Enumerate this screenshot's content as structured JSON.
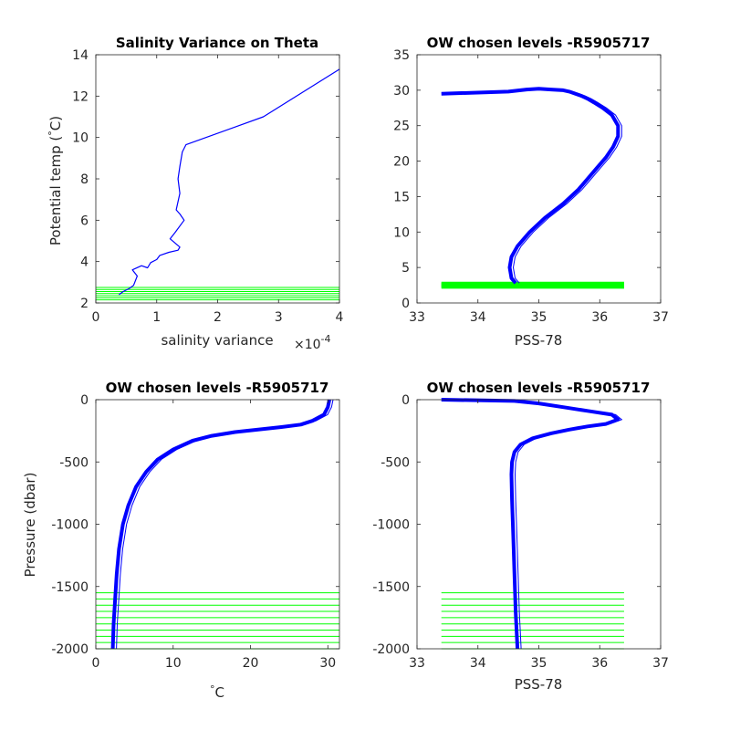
{
  "colors": {
    "profile": "#0000ff",
    "levels": "#00ff00",
    "axis": "#262626"
  },
  "chart_data": [
    {
      "type": "line",
      "title": "Salinity Variance on Theta",
      "xlabel": "salinity variance",
      "xexponent": "×10",
      "xexponent_power": "-4",
      "ylabel": "Potential temp (",
      "ylabel_unit": "C)",
      "ylabel_degree": "°",
      "xlim": [
        0,
        4
      ],
      "ylim": [
        2,
        14
      ],
      "xticks": [
        "0",
        "1",
        "2",
        "3",
        "4"
      ],
      "yticks": [
        "2",
        "4",
        "6",
        "8",
        "10",
        "12",
        "14"
      ],
      "series": [
        {
          "x": [
            0.38,
            0.45,
            0.55,
            0.62,
            0.68,
            0.6,
            0.75,
            0.85,
            0.9,
            1.0,
            1.05,
            1.2,
            1.35,
            1.38,
            1.22,
            1.3,
            1.45,
            1.38,
            1.32,
            1.38,
            1.35,
            1.38,
            1.42,
            1.48,
            2.75,
            4.0
          ],
          "y": [
            2.4,
            2.55,
            2.7,
            2.85,
            3.3,
            3.6,
            3.8,
            3.7,
            3.95,
            4.1,
            4.3,
            4.45,
            4.55,
            4.7,
            5.1,
            5.4,
            6.0,
            6.3,
            6.5,
            7.3,
            8.0,
            8.6,
            9.3,
            9.65,
            11.0,
            13.3
          ]
        }
      ],
      "hlines": [
        2.15,
        2.25,
        2.35,
        2.45,
        2.55,
        2.65,
        2.75
      ],
      "hline_xrange": [
        0,
        4
      ]
    },
    {
      "type": "line",
      "title": "OW chosen levels -R5905717",
      "xlabel": "PSS-78",
      "ylabel": "",
      "xlim": [
        33,
        37
      ],
      "ylim": [
        0,
        35
      ],
      "xticks": [
        "33",
        "34",
        "35",
        "36",
        "37"
      ],
      "yticks": [
        "0",
        "5",
        "10",
        "15",
        "20",
        "25",
        "30",
        "35"
      ],
      "series": [
        {
          "x": [
            34.62,
            34.55,
            34.52,
            34.55,
            34.65,
            34.85,
            35.1,
            35.4,
            35.65,
            35.8,
            35.95,
            36.1,
            36.22,
            36.3,
            36.3,
            36.2,
            36.05,
            35.9,
            35.8,
            35.7,
            35.6,
            35.5,
            35.4,
            35.2,
            35.0,
            34.8,
            34.5,
            33.4
          ],
          "y": [
            2.8,
            3.5,
            5,
            6.5,
            8,
            10,
            12,
            14,
            16,
            17.5,
            19,
            20.5,
            22,
            23.5,
            25,
            26.5,
            27.5,
            28.3,
            28.8,
            29.2,
            29.5,
            29.8,
            30,
            30.1,
            30.2,
            30.1,
            29.8,
            29.5
          ]
        }
      ],
      "hlines": [
        2.2,
        2.4,
        2.6,
        2.8
      ],
      "hline_xrange": [
        33.4,
        36.4
      ]
    },
    {
      "type": "line",
      "title": "OW chosen levels -R5905717",
      "xlabel": "C",
      "xlabel_degree": "°",
      "ylabel": "Pressure (dbar)",
      "xlim": [
        0,
        31.5
      ],
      "ylim": [
        -2000,
        0
      ],
      "xticks": [
        "0",
        "10",
        "20",
        "30"
      ],
      "yticks": [
        "-2000",
        "-1500",
        "-1000",
        "-500",
        "0"
      ],
      "series": [
        {
          "x": [
            2.2,
            2.3,
            2.5,
            2.7,
            3.0,
            3.5,
            4.2,
            5.2,
            6.5,
            8.0,
            10.0,
            12.5,
            15.0,
            18.0,
            21.0,
            24.0,
            26.5,
            28.0,
            29.5,
            30.0,
            30.2
          ],
          "y": [
            -2000,
            -1800,
            -1600,
            -1400,
            -1200,
            -1000,
            -850,
            -700,
            -580,
            -480,
            -400,
            -330,
            -290,
            -260,
            -240,
            -220,
            -200,
            -170,
            -120,
            -60,
            0
          ]
        }
      ],
      "hlines": [
        -1550,
        -1600,
        -1650,
        -1700,
        -1750,
        -1800,
        -1850,
        -1900,
        -1950,
        -2000
      ],
      "hline_xrange": [
        0,
        31.5
      ]
    },
    {
      "type": "line",
      "title": "OW chosen levels -R5905717",
      "xlabel": "PSS-78",
      "ylabel": "",
      "xlim": [
        33,
        37
      ],
      "ylim": [
        -2000,
        0
      ],
      "xticks": [
        "33",
        "34",
        "35",
        "36",
        "37"
      ],
      "yticks": [
        "-2000",
        "-1500",
        "-1000",
        "-500",
        "0"
      ],
      "series": [
        {
          "x": [
            34.65,
            34.62,
            34.6,
            34.58,
            34.56,
            34.55,
            34.56,
            34.6,
            34.7,
            34.9,
            35.2,
            35.5,
            35.8,
            36.1,
            36.3,
            36.2,
            35.8,
            35.4,
            35.0,
            34.6,
            33.4
          ],
          "y": [
            -2000,
            -1700,
            -1400,
            -1100,
            -800,
            -600,
            -500,
            -420,
            -360,
            -310,
            -270,
            -240,
            -215,
            -195,
            -160,
            -120,
            -90,
            -60,
            -30,
            -10,
            0
          ]
        }
      ],
      "hlines": [
        -1550,
        -1600,
        -1650,
        -1700,
        -1750,
        -1800,
        -1850,
        -1900,
        -1950,
        -2000
      ],
      "hline_xrange": [
        33.4,
        36.4
      ]
    }
  ]
}
